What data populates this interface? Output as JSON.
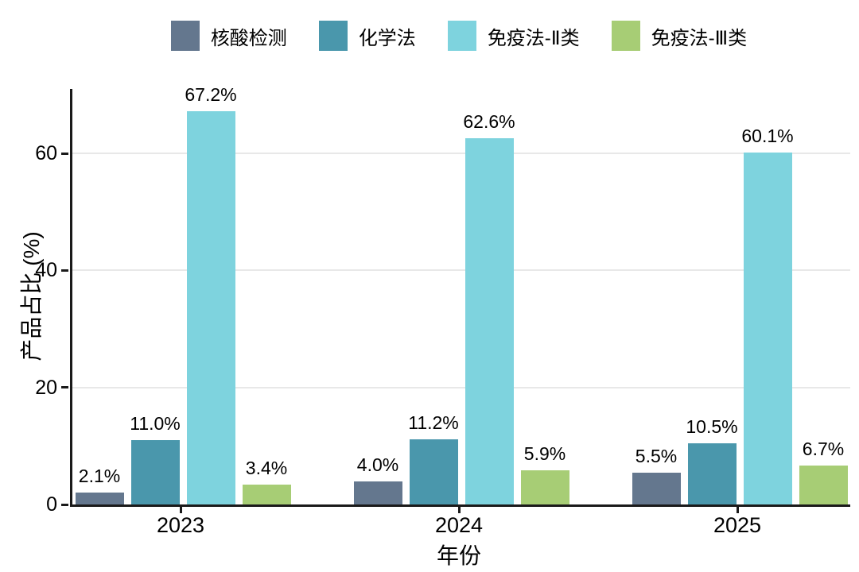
{
  "figure": {
    "background": "#ffffff",
    "axis_color": "#1a1a1a",
    "gridline_color": "#e8e8e8"
  },
  "chart_data": {
    "type": "bar",
    "title": "",
    "xlabel": "年份",
    "ylabel": "产品占比 (%)",
    "categories": [
      "2023",
      "2024",
      "2025"
    ],
    "series": [
      {
        "name": "核酸检测",
        "color": "#64778e",
        "values": [
          2.1,
          4.0,
          5.5
        ],
        "labels": [
          "2.1%",
          "4.0%",
          "5.5%"
        ]
      },
      {
        "name": "化学法",
        "color": "#4a97ac",
        "values": [
          11.0,
          11.2,
          10.5
        ],
        "labels": [
          "11.0%",
          "11.2%",
          "10.5%"
        ]
      },
      {
        "name": "免疫法-Ⅱ类",
        "color": "#7ed3de",
        "values": [
          67.2,
          62.6,
          60.1
        ],
        "labels": [
          "67.2%",
          "62.6%",
          "60.1%"
        ]
      },
      {
        "name": "免疫法-Ⅲ类",
        "color": "#a7cd75",
        "values": [
          3.4,
          5.9,
          6.7
        ],
        "labels": [
          "3.4%",
          "5.9%",
          "6.7%"
        ]
      }
    ],
    "yticks": [
      0,
      20,
      40,
      60
    ],
    "ylim": [
      0,
      71
    ],
    "grid": "horizontal-major",
    "legend_position": "top-center"
  }
}
